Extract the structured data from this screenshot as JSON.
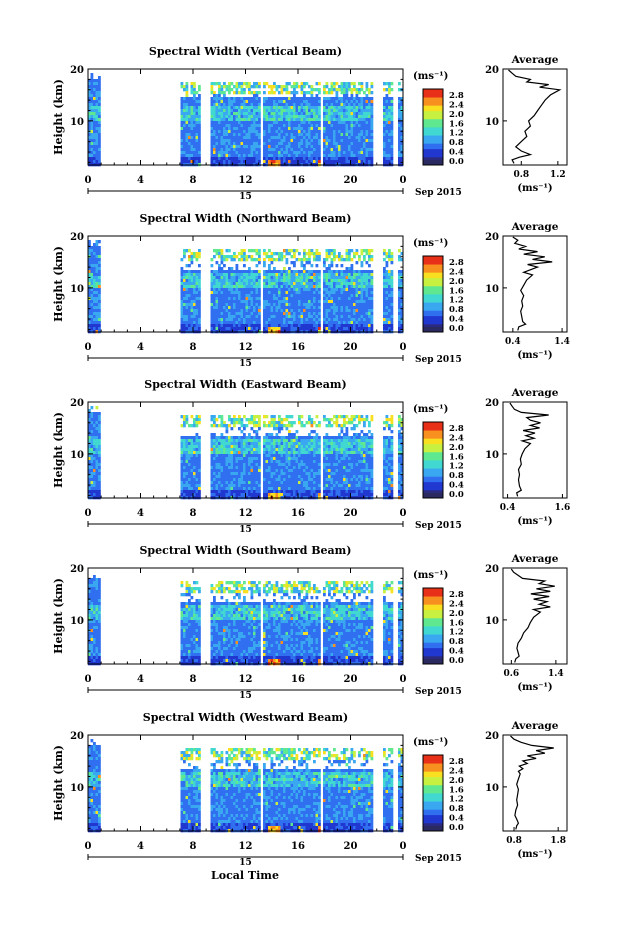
{
  "figure": {
    "xlabel": "Local Time",
    "date_label": "Sep 2015",
    "day_label": "15",
    "ylabel": "Height (km)",
    "colorbar_unit": "(ms⁻¹)",
    "profile_title": "Average",
    "profile_unit": "(ms⁻¹)",
    "colors": {
      "colormap": [
        "#2a2a80",
        "#2038d0",
        "#2f6ff0",
        "#3aa8f0",
        "#40d8d0",
        "#60e890",
        "#c8f040",
        "#f8e020",
        "#f89020",
        "#e83018",
        "#c01010"
      ],
      "background": "#ffffff",
      "frame": "#000000"
    }
  },
  "chart_data": [
    {
      "type": "heatmap",
      "title": "Spectral Width (Vertical Beam)",
      "xlabel": "Local Time",
      "ylabel": "Height (km)",
      "x_ticks": [
        "0",
        "4",
        "8",
        "12",
        "16",
        "20",
        "0"
      ],
      "y_ticks": [
        "20",
        "10"
      ],
      "xlim": [
        0,
        24
      ],
      "ylim": [
        1.5,
        20
      ],
      "colorbar_ticks": [
        "2.8",
        "2.4",
        "2.0",
        "1.6",
        "1.2",
        "0.8",
        "0.4",
        "0.0"
      ],
      "colorbar_range": [
        0,
        2.8
      ],
      "data_gaps_hours": [
        [
          0.8,
          6.9
        ],
        [
          8.4,
          9.2
        ],
        [
          13.0,
          13.3
        ],
        [
          17.6,
          17.9
        ],
        [
          21.7,
          22.3
        ],
        [
          23.2,
          23.5
        ]
      ],
      "profile": {
        "title": "Average",
        "xlabel": "(ms⁻¹)",
        "x_ticks": [
          "0.8",
          "1.2"
        ],
        "xlim": [
          0.6,
          1.3
        ],
        "y_ticks": [
          "20",
          "10"
        ],
        "ylim": [
          1.5,
          20
        ],
        "points": [
          [
            0.72,
            1.8
          ],
          [
            0.7,
            2.5
          ],
          [
            0.78,
            3
          ],
          [
            0.9,
            3.5
          ],
          [
            0.8,
            4.2
          ],
          [
            0.74,
            5
          ],
          [
            0.8,
            6
          ],
          [
            0.86,
            7
          ],
          [
            0.84,
            8
          ],
          [
            0.9,
            9
          ],
          [
            0.88,
            10
          ],
          [
            0.94,
            11
          ],
          [
            0.98,
            12
          ],
          [
            1.02,
            13
          ],
          [
            1.06,
            14
          ],
          [
            1.12,
            15
          ],
          [
            1.22,
            16
          ],
          [
            1.0,
            16.5
          ],
          [
            1.1,
            17
          ],
          [
            0.86,
            17.5
          ],
          [
            0.9,
            18
          ],
          [
            0.74,
            18.6
          ],
          [
            0.7,
            19.2
          ],
          [
            0.66,
            19.8
          ]
        ]
      }
    },
    {
      "type": "heatmap",
      "title": "Spectral Width (Northward Beam)",
      "xlabel": "Local Time",
      "ylabel": "Height (km)",
      "x_ticks": [
        "0",
        "4",
        "8",
        "12",
        "16",
        "20",
        "0"
      ],
      "y_ticks": [
        "20",
        "10"
      ],
      "xlim": [
        0,
        24
      ],
      "ylim": [
        1.5,
        20
      ],
      "colorbar_ticks": [
        "2.8",
        "2.4",
        "2.0",
        "1.6",
        "1.2",
        "0.8",
        "0.4",
        "0.0"
      ],
      "colorbar_range": [
        0,
        2.8
      ],
      "data_gaps_hours": [
        [
          0.8,
          6.9
        ],
        [
          8.4,
          9.2
        ],
        [
          13.0,
          13.3
        ],
        [
          17.6,
          17.9
        ],
        [
          21.7,
          22.3
        ],
        [
          23.2,
          23.5
        ]
      ],
      "profile": {
        "title": "Average",
        "xlabel": "(ms⁻¹)",
        "x_ticks": [
          "0.4",
          "1.4"
        ],
        "xlim": [
          0.2,
          1.5
        ],
        "y_ticks": [
          "20",
          "10"
        ],
        "ylim": [
          1.5,
          20
        ],
        "points": [
          [
            0.5,
            1.8
          ],
          [
            0.52,
            2.5
          ],
          [
            0.66,
            3
          ],
          [
            0.6,
            3.5
          ],
          [
            0.58,
            4.5
          ],
          [
            0.56,
            5.5
          ],
          [
            0.6,
            6.5
          ],
          [
            0.58,
            7.5
          ],
          [
            0.62,
            8.5
          ],
          [
            0.56,
            9.5
          ],
          [
            0.62,
            10.5
          ],
          [
            0.68,
            11.5
          ],
          [
            0.8,
            12.5
          ],
          [
            0.62,
            13
          ],
          [
            0.9,
            14
          ],
          [
            0.7,
            14.5
          ],
          [
            1.2,
            15
          ],
          [
            0.8,
            15.5
          ],
          [
            1.05,
            16
          ],
          [
            0.62,
            16.5
          ],
          [
            0.9,
            17
          ],
          [
            0.52,
            17.5
          ],
          [
            0.66,
            18
          ],
          [
            0.44,
            18.6
          ],
          [
            0.5,
            19.2
          ],
          [
            0.4,
            19.8
          ]
        ]
      }
    },
    {
      "type": "heatmap",
      "title": "Spectral Width (Eastward Beam)",
      "xlabel": "Local Time",
      "ylabel": "Height (km)",
      "x_ticks": [
        "0",
        "4",
        "8",
        "12",
        "16",
        "20",
        "0"
      ],
      "y_ticks": [
        "20",
        "10"
      ],
      "xlim": [
        0,
        24
      ],
      "ylim": [
        1.5,
        20
      ],
      "colorbar_ticks": [
        "2.8",
        "2.4",
        "2.0",
        "1.6",
        "1.2",
        "0.8",
        "0.4",
        "0.0"
      ],
      "colorbar_range": [
        0,
        2.8
      ],
      "data_gaps_hours": [
        [
          0.8,
          6.9
        ],
        [
          8.4,
          9.2
        ],
        [
          13.0,
          13.3
        ],
        [
          17.6,
          17.9
        ],
        [
          21.7,
          22.3
        ],
        [
          23.2,
          23.5
        ]
      ],
      "profile": {
        "title": "Average",
        "xlabel": "(ms⁻¹)",
        "x_ticks": [
          "0.4",
          "1.6"
        ],
        "xlim": [
          0.3,
          1.7
        ],
        "y_ticks": [
          "20",
          "10"
        ],
        "ylim": [
          1.5,
          20
        ],
        "points": [
          [
            0.62,
            1.8
          ],
          [
            0.6,
            2.5
          ],
          [
            0.7,
            3
          ],
          [
            0.66,
            3.8
          ],
          [
            0.64,
            5
          ],
          [
            0.66,
            6
          ],
          [
            0.64,
            7
          ],
          [
            0.7,
            8
          ],
          [
            0.68,
            9
          ],
          [
            0.72,
            10
          ],
          [
            0.78,
            11
          ],
          [
            0.9,
            12
          ],
          [
            0.72,
            12.5
          ],
          [
            0.98,
            13
          ],
          [
            0.8,
            13.5
          ],
          [
            1.0,
            14
          ],
          [
            0.74,
            14.5
          ],
          [
            1.1,
            15
          ],
          [
            0.9,
            15.5
          ],
          [
            1.12,
            16
          ],
          [
            0.9,
            16.5
          ],
          [
            0.82,
            17
          ],
          [
            1.3,
            17.5
          ],
          [
            0.7,
            18
          ],
          [
            0.55,
            18.6
          ],
          [
            0.5,
            19.2
          ],
          [
            0.45,
            19.8
          ]
        ]
      }
    },
    {
      "type": "heatmap",
      "title": "Spectral Width (Southward Beam)",
      "xlabel": "Local Time",
      "ylabel": "Height (km)",
      "x_ticks": [
        "0",
        "4",
        "8",
        "12",
        "16",
        "20",
        "0"
      ],
      "y_ticks": [
        "20",
        "10"
      ],
      "xlim": [
        0,
        24
      ],
      "ylim": [
        1.5,
        20
      ],
      "colorbar_ticks": [
        "2.8",
        "2.4",
        "2.0",
        "1.6",
        "1.2",
        "0.8",
        "0.4",
        "0.0"
      ],
      "colorbar_range": [
        0,
        2.8
      ],
      "data_gaps_hours": [
        [
          0.8,
          6.9
        ],
        [
          8.4,
          9.2
        ],
        [
          13.0,
          13.3
        ],
        [
          17.6,
          17.9
        ],
        [
          21.7,
          22.3
        ],
        [
          23.2,
          23.5
        ]
      ],
      "profile": {
        "title": "Average",
        "xlabel": "(ms⁻¹)",
        "x_ticks": [
          "0.6",
          "1.4"
        ],
        "xlim": [
          0.45,
          1.6
        ],
        "y_ticks": [
          "20",
          "10"
        ],
        "ylim": [
          1.5,
          20
        ],
        "points": [
          [
            0.66,
            1.8
          ],
          [
            0.68,
            2.5
          ],
          [
            0.74,
            3
          ],
          [
            0.72,
            3.8
          ],
          [
            0.7,
            4.5
          ],
          [
            0.72,
            5.5
          ],
          [
            0.78,
            6.5
          ],
          [
            0.82,
            7.5
          ],
          [
            0.9,
            8.5
          ],
          [
            0.94,
            9.5
          ],
          [
            1.0,
            10.5
          ],
          [
            1.12,
            11.5
          ],
          [
            1.0,
            12
          ],
          [
            1.3,
            12.5
          ],
          [
            1.1,
            13
          ],
          [
            1.24,
            13.5
          ],
          [
            1.0,
            14
          ],
          [
            1.28,
            14.5
          ],
          [
            0.95,
            15
          ],
          [
            1.3,
            15.5
          ],
          [
            1.05,
            16
          ],
          [
            1.38,
            16.5
          ],
          [
            1.1,
            17
          ],
          [
            1.2,
            17.5
          ],
          [
            0.8,
            18
          ],
          [
            0.72,
            18.6
          ],
          [
            0.64,
            19.2
          ],
          [
            0.6,
            19.8
          ]
        ]
      }
    },
    {
      "type": "heatmap",
      "title": "Spectral Width (Westward Beam)",
      "xlabel": "Local Time",
      "ylabel": "Height (km)",
      "x_ticks": [
        "0",
        "4",
        "8",
        "12",
        "16",
        "20",
        "0"
      ],
      "y_ticks": [
        "20",
        "10"
      ],
      "xlim": [
        0,
        24
      ],
      "ylim": [
        1.5,
        20
      ],
      "colorbar_ticks": [
        "2.8",
        "2.4",
        "2.0",
        "1.6",
        "1.2",
        "0.8",
        "0.4",
        "0.0"
      ],
      "colorbar_range": [
        0,
        2.8
      ],
      "data_gaps_hours": [
        [
          0.8,
          6.9
        ],
        [
          8.4,
          9.2
        ],
        [
          13.0,
          13.3
        ],
        [
          17.6,
          17.9
        ],
        [
          21.7,
          22.3
        ],
        [
          23.2,
          23.5
        ]
      ],
      "profile": {
        "title": "Average",
        "xlabel": "(ms⁻¹)",
        "x_ticks": [
          "0.8",
          "1.8"
        ],
        "xlim": [
          0.55,
          2.0
        ],
        "y_ticks": [
          "20",
          "10"
        ],
        "ylim": [
          1.5,
          20
        ],
        "points": [
          [
            0.84,
            1.8
          ],
          [
            0.86,
            2.5
          ],
          [
            0.9,
            3
          ],
          [
            0.86,
            3.8
          ],
          [
            0.82,
            4.5
          ],
          [
            0.84,
            5.5
          ],
          [
            0.88,
            6.5
          ],
          [
            0.86,
            7.5
          ],
          [
            0.88,
            8.5
          ],
          [
            0.9,
            9.5
          ],
          [
            0.86,
            10.5
          ],
          [
            0.9,
            11.5
          ],
          [
            0.94,
            12.5
          ],
          [
            0.9,
            13
          ],
          [
            1.0,
            13.5
          ],
          [
            0.92,
            14
          ],
          [
            1.1,
            14.5
          ],
          [
            1.0,
            15
          ],
          [
            1.3,
            15.5
          ],
          [
            1.1,
            16
          ],
          [
            1.5,
            16.5
          ],
          [
            1.3,
            17
          ],
          [
            1.7,
            17.5
          ],
          [
            1.2,
            18
          ],
          [
            0.96,
            18.6
          ],
          [
            0.8,
            19.2
          ],
          [
            0.72,
            19.8
          ]
        ]
      }
    }
  ]
}
